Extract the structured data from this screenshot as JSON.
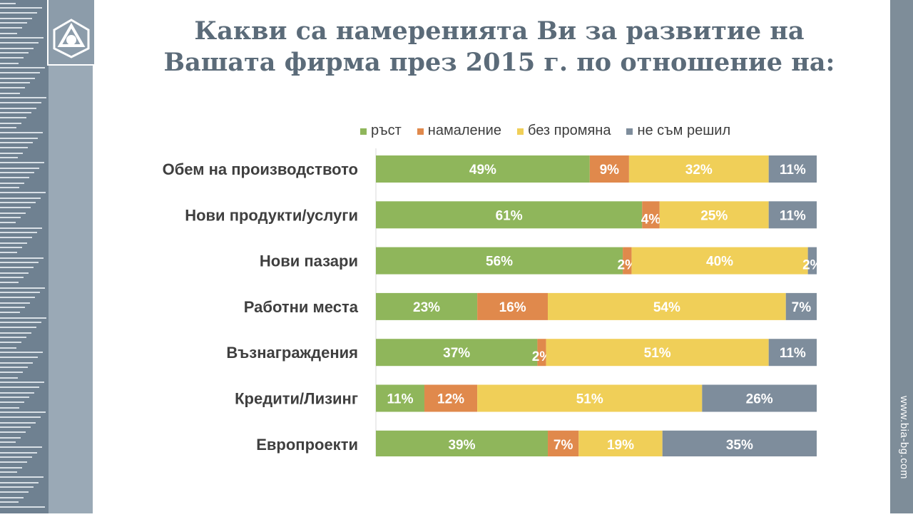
{
  "title": {
    "line1": "Какви са намеренията Ви за развитие на",
    "line2": "Вашата фирма през 2015 г. по отношение на:"
  },
  "side_url": "www.bia-bg.com",
  "colors": {
    "growth": "#8fb65b",
    "decrease": "#e0894c",
    "no_change": "#f0cf58",
    "undecided": "#7e8d9c"
  },
  "chart_data": {
    "type": "bar",
    "orientation": "horizontal",
    "stacked": true,
    "percent_stacked": true,
    "categories": [
      "Обем на производството",
      "Нови продукти/услуги",
      "Нови пазари",
      "Работни места",
      "Възнаграждения",
      "Кредити/Лизинг",
      "Европроекти"
    ],
    "series": [
      {
        "name": "ръст",
        "values": [
          49,
          61,
          56,
          23,
          37,
          11,
          39
        ]
      },
      {
        "name": "намаление",
        "values": [
          9,
          4,
          2,
          16,
          2,
          12,
          7
        ]
      },
      {
        "name": "без промяна",
        "values": [
          32,
          25,
          40,
          54,
          51,
          51,
          19
        ]
      },
      {
        "name": "не съм решил",
        "values": [
          11,
          11,
          2,
          7,
          11,
          26,
          35
        ]
      }
    ],
    "value_suffix": "%",
    "legend_position": "top",
    "grid": false
  }
}
